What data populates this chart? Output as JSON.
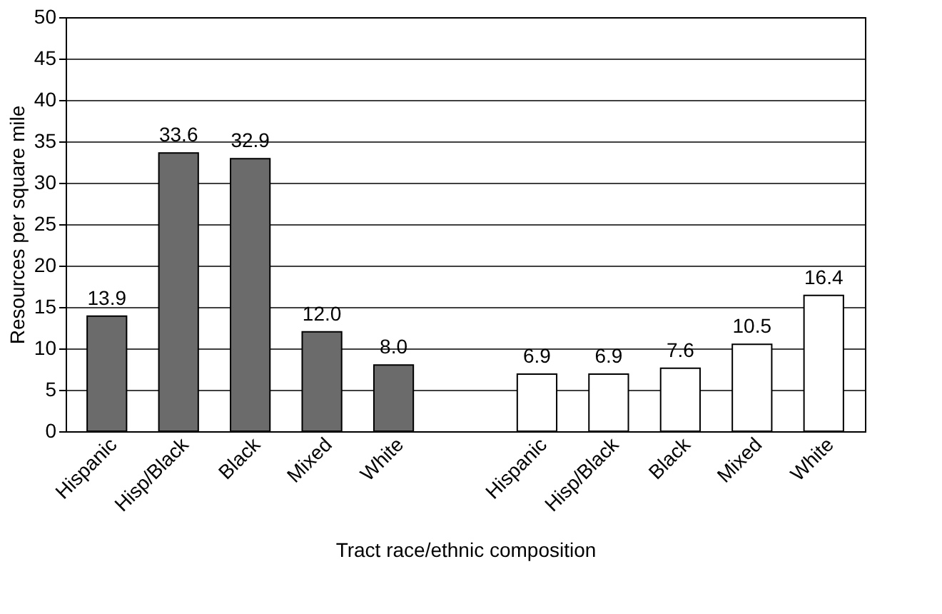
{
  "chart_data": {
    "type": "bar",
    "xlabel": "Tract race/ethnic composition",
    "ylabel": "Resources per square mile",
    "categories": [
      "Hispanic",
      "Hisp/Black",
      "Black",
      "Mixed",
      "White",
      null,
      "Hispanic",
      "Hisp/Black",
      "Black",
      "Mixed",
      "White"
    ],
    "values": [
      13.9,
      33.6,
      32.9,
      12.0,
      8.0,
      null,
      6.9,
      6.9,
      7.6,
      10.5,
      16.4
    ],
    "value_labels": [
      "13.9",
      "33.6",
      "32.9",
      "12.0",
      "8.0",
      null,
      "6.9",
      "6.9",
      "7.6",
      "10.5",
      "16.4"
    ],
    "colors": [
      "#6b6b6b",
      "#6b6b6b",
      "#6b6b6b",
      "#6b6b6b",
      "#6b6b6b",
      null,
      "#ffffff",
      "#ffffff",
      "#ffffff",
      "#ffffff",
      "#ffffff"
    ],
    "ylim": [
      0,
      50
    ],
    "yticks": [
      0,
      5,
      10,
      15,
      20,
      25,
      30,
      35,
      40,
      45,
      50
    ],
    "grid": "y"
  }
}
